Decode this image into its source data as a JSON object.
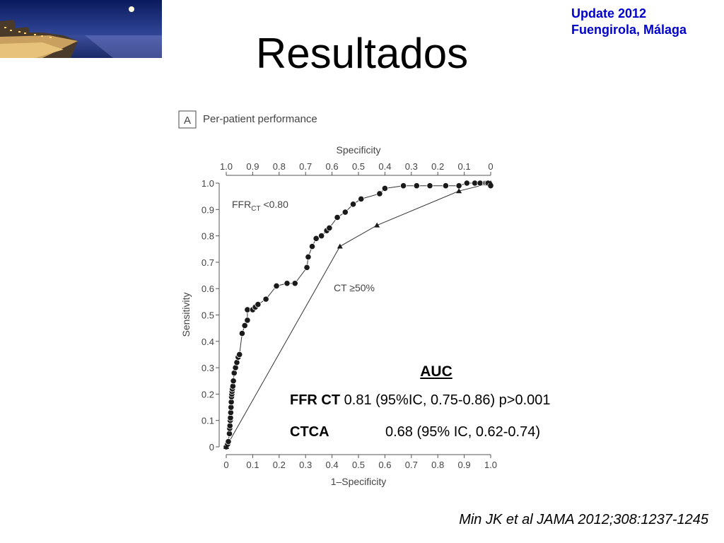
{
  "slide": {
    "title": "Resultados",
    "update_line1": "Update 2012",
    "update_line2": "Fuengirola, Málaga",
    "citation": "Min JK et al JAMA 2012;308:1237-1245"
  },
  "auc": {
    "heading": "AUC",
    "rows": [
      {
        "label": "FFR CT",
        "value": "0.81 (95%IC, 0.75-0.86) p>0.001"
      },
      {
        "label": "CTCA",
        "value": "0.68 (95% IC, 0.62-0.74)"
      }
    ]
  },
  "chart_data": {
    "type": "line",
    "panel_letter": "A",
    "title": "Per-patient performance",
    "xlabel": "1–Specificity",
    "ylabel": "Sensitivity",
    "top_xlabel": "Specificity",
    "xlim": [
      0,
      1.0
    ],
    "ylim": [
      0,
      1.0
    ],
    "grid": false,
    "x_ticks": [
      "0",
      "0.1",
      "0.2",
      "0.3",
      "0.4",
      "0.5",
      "0.6",
      "0.7",
      "0.8",
      "0.9",
      "1.0"
    ],
    "top_x_ticks": [
      "1.0",
      "0.9",
      "0.8",
      "0.7",
      "0.6",
      "0.5",
      "0.4",
      "0.3",
      "0.2",
      "0.1",
      "0"
    ],
    "y_ticks": [
      "0",
      "0.1",
      "0.2",
      "0.3",
      "0.4",
      "0.5",
      "0.6",
      "0.7",
      "0.8",
      "0.9",
      "1.0"
    ],
    "series": [
      {
        "name": "FFRCT <0.80",
        "name_main": "FFR",
        "name_sub": "CT",
        "name_rest": " <0.80",
        "marker": "circle",
        "x": [
          0,
          0.005,
          0.008,
          0.012,
          0.013,
          0.014,
          0.015,
          0.016,
          0.017,
          0.018,
          0.019,
          0.02,
          0.021,
          0.022,
          0.023,
          0.025,
          0.027,
          0.03,
          0.035,
          0.04,
          0.045,
          0.05,
          0.06,
          0.07,
          0.08,
          0.08,
          0.1,
          0.11,
          0.12,
          0.15,
          0.19,
          0.23,
          0.26,
          0.305,
          0.31,
          0.325,
          0.34,
          0.36,
          0.38,
          0.39,
          0.42,
          0.45,
          0.48,
          0.51,
          0.58,
          0.6,
          0.67,
          0.72,
          0.77,
          0.83,
          0.88,
          0.91,
          0.94,
          0.96,
          0.98,
          0.985,
          0.99,
          1.0
        ],
        "y": [
          0,
          0.01,
          0.02,
          0.05,
          0.07,
          0.08,
          0.1,
          0.11,
          0.13,
          0.15,
          0.17,
          0.19,
          0.2,
          0.21,
          0.22,
          0.23,
          0.25,
          0.28,
          0.3,
          0.32,
          0.34,
          0.35,
          0.43,
          0.46,
          0.48,
          0.52,
          0.52,
          0.53,
          0.54,
          0.56,
          0.61,
          0.62,
          0.62,
          0.68,
          0.72,
          0.76,
          0.79,
          0.8,
          0.82,
          0.83,
          0.87,
          0.89,
          0.92,
          0.94,
          0.96,
          0.98,
          0.99,
          0.99,
          0.99,
          0.99,
          0.99,
          1.0,
          1.0,
          1.0,
          1.0,
          1.0,
          1.0,
          0.99
        ]
      },
      {
        "name": "CT ≥50%",
        "marker": "triangle",
        "x": [
          0,
          0.43,
          0.57,
          0.88,
          1.0
        ],
        "y": [
          0,
          0.76,
          0.84,
          0.97,
          1.0
        ]
      }
    ]
  }
}
